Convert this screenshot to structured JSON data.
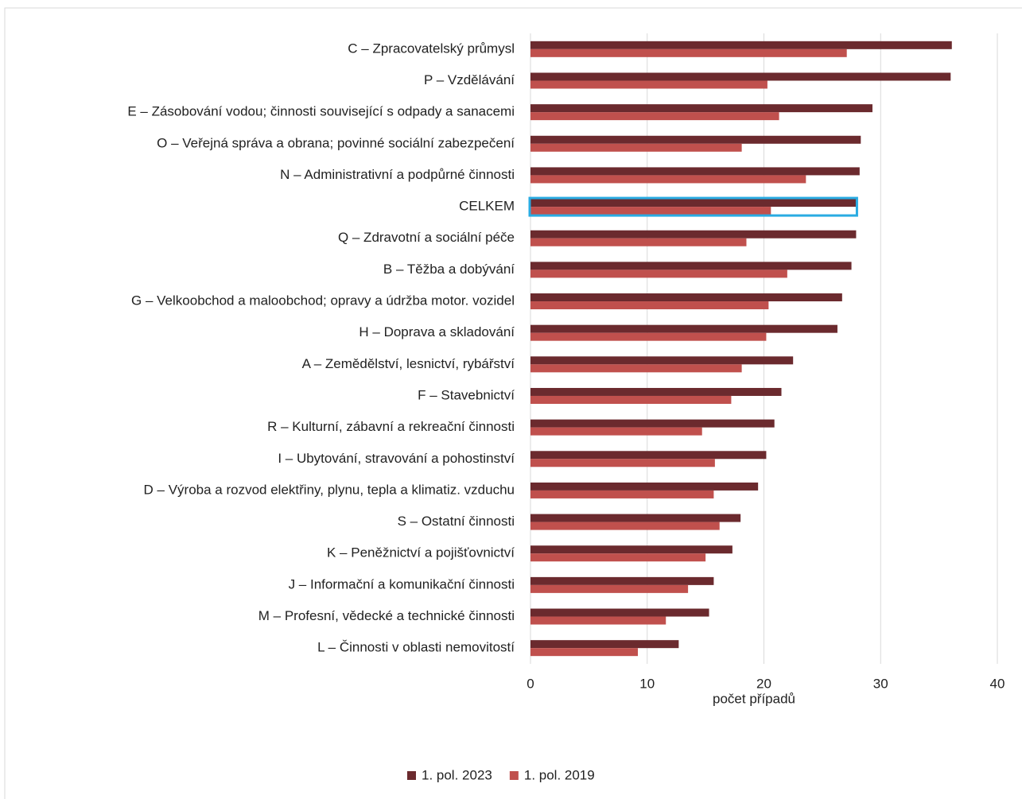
{
  "chart_data": {
    "type": "barh",
    "categories": [
      "C – Zpracovatelský průmysl",
      "P – Vzdělávání",
      "E – Zásobování vodou; činnosti související s odpady a sanacemi",
      "O – Veřejná správa a obrana; povinné sociální zabezpečení",
      "N – Administrativní a podpůrné činnosti",
      "CELKEM",
      "Q – Zdravotní a sociální péče",
      "B – Těžba a dobývání",
      "G – Velkoobchod a maloobchod; opravy a údržba motor. vozidel",
      "H – Doprava a skladování",
      "A – Zemědělství, lesnictví, rybářství",
      "F – Stavebnictví",
      "R – Kulturní, zábavní a rekreační činnosti",
      "I – Ubytování, stravování a pohostinství",
      "D – Výroba a rozvod elektřiny, plynu, tepla a klimatiz. vzduchu",
      "S – Ostatní činnosti",
      "K – Peněžnictví a pojišťovnictví",
      "J – Informační a komunikační činnosti",
      "M – Profesní, vědecké a technické činnosti",
      "L – Činnosti v oblasti nemovitostí"
    ],
    "series": [
      {
        "name": "1. pol. 2023",
        "color": "#6b2a2e",
        "values": [
          36.1,
          36.0,
          29.3,
          28.3,
          28.2,
          27.9,
          27.9,
          27.5,
          26.7,
          26.3,
          22.5,
          21.5,
          20.9,
          20.2,
          19.5,
          18.0,
          17.3,
          15.7,
          15.3,
          12.7
        ]
      },
      {
        "name": "1. pol. 2019",
        "color": "#c0504d",
        "values": [
          27.1,
          20.3,
          21.3,
          18.1,
          23.6,
          20.6,
          18.5,
          22.0,
          20.4,
          20.2,
          18.1,
          17.2,
          14.7,
          15.8,
          15.7,
          16.2,
          15.0,
          13.5,
          11.6,
          9.2
        ]
      }
    ],
    "x_label": "počet případů",
    "xlim": [
      0,
      40
    ],
    "xticks": [
      0,
      10,
      20,
      30,
      40
    ],
    "grid": true,
    "legend": "bottom",
    "highlight": {
      "category": 5,
      "color": "#29abe2"
    }
  }
}
